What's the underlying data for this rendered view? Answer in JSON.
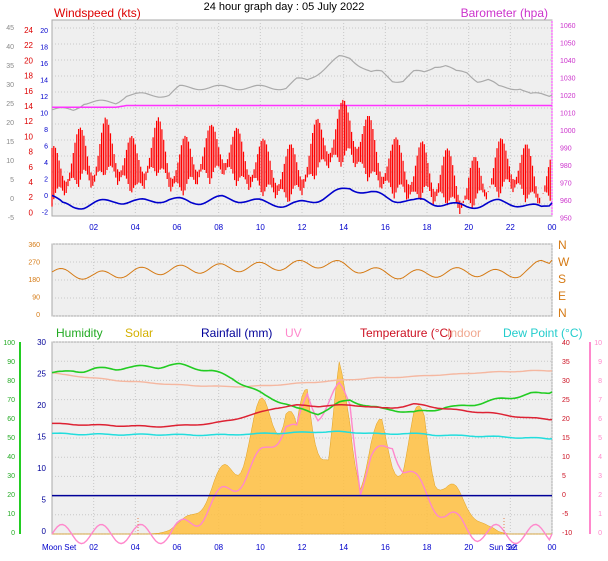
{
  "title": "24 hour graph day : 05 July 2022",
  "colors": {
    "wind": "#ff0000",
    "gust_avg": "#0000cc",
    "baro": "#ff33ff",
    "baro_alt": "#aaaaaa",
    "dir": "#d57a14",
    "humidity": "#22cc22",
    "solar": "#ffc040",
    "rain": "#000099",
    "uv": "#ff88cc",
    "temp": "#dd2233",
    "indoor": "#f5b7a0",
    "dew": "#22dddd",
    "plot_bg": "#efefef",
    "grid": "#c8c8c8",
    "axis_left": "#888888",
    "axis_blue": "#0000cc"
  },
  "chart_data": [
    {
      "id": "wind_baro",
      "type": "line",
      "label_left": "Windspeed (kts)",
      "label_right": "Barometer (hpa)",
      "x_ticks": [
        "02",
        "04",
        "06",
        "08",
        "10",
        "12",
        "14",
        "16",
        "18",
        "20",
        "22",
        "00"
      ],
      "y_left_red_ticks": [
        "24",
        "22",
        "20",
        "18",
        "16",
        "14",
        "12",
        "10",
        "8",
        "6",
        "4",
        "2",
        "0"
      ],
      "y_left_grey_ticks": [
        "45",
        "40",
        "35",
        "30",
        "25",
        "20",
        "15",
        "10",
        "5",
        "0",
        "-5"
      ],
      "y_left_blue_ticks": [
        "20",
        "18",
        "16",
        "14",
        "12",
        "10",
        "8",
        "6",
        "4",
        "2",
        "0",
        "-2"
      ],
      "y_right_ticks": [
        "1060",
        "1050",
        "1040",
        "1030",
        "1020",
        "1010",
        "1000",
        "990",
        "980",
        "970",
        "960",
        "950"
      ],
      "ylim_kts": [
        0,
        25
      ],
      "ylim_hpa": [
        950,
        1060
      ],
      "series": [
        {
          "key": "speed",
          "values": [
            3,
            4,
            5,
            6,
            5,
            7,
            6,
            5,
            4,
            6,
            7,
            5,
            4,
            5,
            6,
            6,
            7,
            6,
            5,
            5,
            4,
            4,
            3,
            4,
            5,
            7,
            8,
            8,
            9,
            7,
            6,
            5,
            4,
            4,
            3,
            4,
            3,
            3,
            2,
            2,
            3,
            4,
            4,
            5,
            4,
            3,
            3,
            3
          ]
        },
        {
          "key": "gust",
          "values": [
            7,
            8,
            9,
            10,
            9,
            11,
            10,
            9,
            8,
            10,
            11,
            9,
            8,
            9,
            10,
            10,
            11,
            10,
            9,
            9,
            8,
            8,
            7,
            8,
            9,
            11,
            12,
            13,
            14,
            12,
            11,
            9,
            8,
            9,
            7,
            8,
            7,
            7,
            6,
            5,
            6,
            7,
            8,
            9,
            8,
            7,
            6,
            6
          ]
        },
        {
          "key": "avg",
          "values": [
            2.5,
            1.2,
            1.0,
            1.1,
            1.4,
            1.6,
            1.8,
            1.7,
            1.6,
            1.7,
            1.9,
            2.0,
            1.8,
            1.6,
            1.7,
            1.9,
            2.1,
            2.0,
            1.9,
            1.7,
            1.5,
            1.4,
            1.2,
            1.3,
            1.6,
            2.0,
            2.5,
            3.0,
            3.5,
            3.2,
            2.8,
            2.4,
            2.0,
            1.9,
            1.6,
            1.8,
            1.5,
            1.3,
            1.1,
            1.0,
            1.2,
            1.4,
            1.6,
            1.5,
            1.3,
            1.0,
            0.8,
            1.5
          ]
        },
        {
          "key": "pressure",
          "values": [
            1011,
            1011,
            1011,
            1011,
            1011,
            1011,
            1011,
            1012,
            1012,
            1012,
            1012,
            1012,
            1012,
            1012,
            1012,
            1012,
            1012,
            1012,
            1012,
            1012,
            1012,
            1012,
            1012,
            1012,
            1012,
            1012,
            1012,
            1012,
            1012,
            1012,
            1012,
            1012,
            1012,
            1012,
            1012,
            1012,
            1012,
            1012,
            1012,
            1012,
            1012,
            1012,
            1012,
            1012,
            1012,
            1012,
            1012,
            1012
          ]
        },
        {
          "key": "grey_trace",
          "values": [
            14,
            14,
            14,
            15,
            15,
            15,
            15,
            16,
            16,
            16,
            16,
            16,
            17,
            17,
            17,
            17,
            17,
            17,
            17,
            17,
            17,
            17,
            17,
            18,
            18,
            19,
            20,
            21,
            21,
            20,
            19,
            19,
            18,
            18,
            19,
            19,
            20,
            20,
            19,
            19,
            18,
            18,
            17,
            17,
            17,
            16,
            16,
            16
          ]
        }
      ]
    },
    {
      "id": "direction",
      "type": "line",
      "y_ticks": [
        "360",
        "270",
        "180",
        "90",
        "0"
      ],
      "compass": [
        "N",
        "W",
        "S",
        "E",
        "N"
      ],
      "ylim": [
        0,
        360
      ],
      "series": [
        {
          "key": "direction",
          "values": [
            220,
            215,
            210,
            205,
            200,
            205,
            210,
            215,
            220,
            225,
            228,
            230,
            232,
            234,
            236,
            238,
            240,
            242,
            244,
            246,
            248,
            250,
            250,
            255,
            260,
            262,
            260,
            255,
            245,
            235,
            225,
            215,
            210,
            205,
            208,
            212,
            215,
            218,
            220,
            222,
            218,
            214,
            210,
            212,
            214,
            230,
            265,
            280
          ]
        }
      ]
    },
    {
      "id": "temp_solar",
      "type": "area",
      "labels": {
        "humidity": "Humidity",
        "solar": "Solar",
        "rain": "Rainfall (mm)",
        "uv": "UV",
        "temp": "Temperature (°C)",
        "indoor": "Indoor",
        "dew": "Dew Point (°C)"
      },
      "x_ticks": [
        "02",
        "04",
        "06",
        "08",
        "10",
        "12",
        "14",
        "16",
        "18",
        "20",
        "22",
        "00"
      ],
      "moon_set": "Moon Set",
      "sun_set": "Sun Set",
      "y_left_green_ticks": [
        "100",
        "90",
        "80",
        "70",
        "60",
        "50",
        "40",
        "30",
        "20",
        "10",
        "0"
      ],
      "y_left_blue_ticks": [
        "30",
        "25",
        "20",
        "15",
        "10",
        "5",
        "0"
      ],
      "y_right_temp_ticks": [
        "40",
        "35",
        "30",
        "25",
        "20",
        "15",
        "10",
        "5",
        "0",
        "-5",
        "-10"
      ],
      "y_right_uv_ticks": [
        "10",
        "9",
        "8",
        "7",
        "6",
        "5",
        "4",
        "3",
        "2",
        "1",
        "0"
      ],
      "series": [
        {
          "key": "humidity",
          "values": [
            84,
            84,
            85,
            85,
            86,
            86,
            86,
            87,
            87,
            87,
            87,
            88,
            88,
            87,
            86,
            85,
            83,
            81,
            78,
            75,
            72,
            70,
            68,
            65,
            64,
            63,
            65,
            68,
            70,
            68,
            66,
            65,
            65,
            64,
            63,
            64,
            65,
            66,
            66,
            67,
            68,
            69,
            70,
            71,
            72,
            73,
            73,
            74
          ]
        },
        {
          "key": "solar",
          "values": [
            0,
            0,
            0,
            0,
            0,
            0,
            0,
            0,
            0,
            0,
            5,
            20,
            50,
            100,
            160,
            220,
            290,
            370,
            440,
            520,
            600,
            680,
            700,
            460,
            720,
            560,
            380,
            720,
            620,
            300,
            420,
            500,
            420,
            380,
            520,
            560,
            330,
            250,
            200,
            140,
            90,
            40,
            10,
            0,
            0,
            0,
            0,
            0
          ]
        },
        {
          "key": "uv",
          "values": [
            0,
            0,
            0,
            0,
            0,
            0,
            0,
            0,
            0,
            0,
            0,
            0,
            0.2,
            0.6,
            1,
            1.5,
            2,
            2.5,
            3,
            3.6,
            4.2,
            5,
            5.8,
            5.2,
            7.2,
            6.4,
            6.8,
            7.4,
            6.9,
            2.5,
            3.8,
            4.2,
            4.8,
            3.5,
            2.8,
            2.2,
            1.6,
            1.0,
            0.6,
            0.3,
            0.1,
            0,
            0,
            0,
            0,
            0,
            0,
            0
          ]
        },
        {
          "key": "temperature",
          "values": [
            18.8,
            18.6,
            18.5,
            18.5,
            18.4,
            18.3,
            18.2,
            18.2,
            18.1,
            18.0,
            18.0,
            18.1,
            18.2,
            18.4,
            18.6,
            18.8,
            19.2,
            19.8,
            20.5,
            21.2,
            22.0,
            22.8,
            23.2,
            23.5,
            23.4,
            23.3,
            23.4,
            23.5,
            23.6,
            23.4,
            23.0,
            22.8,
            22.9,
            23.2,
            23.8,
            23.5,
            23.0,
            22.6,
            22.3,
            22.0,
            21.8,
            21.6,
            21.2,
            20.8,
            20.5,
            20.2,
            20.0,
            19.8
          ]
        },
        {
          "key": "indoor",
          "values": [
            32.0,
            31.5,
            31.2,
            30.9,
            30.6,
            30.3,
            30.0,
            29.8,
            29.6,
            29.4,
            29.2,
            29.0,
            28.8,
            28.7,
            28.6,
            28.5,
            28.4,
            28.4,
            28.4,
            28.5,
            28.6,
            28.8,
            29.0,
            29.2,
            29.4,
            29.6,
            29.8,
            30.0,
            30.2,
            30.4,
            30.6,
            30.7,
            30.8,
            30.9,
            31.0,
            31.2,
            31.4,
            31.5,
            31.6,
            31.8,
            32.0,
            32.1,
            32.2,
            32.3,
            32.4,
            32.5,
            32.5,
            32.5
          ]
        },
        {
          "key": "dew_point",
          "values": [
            16.2,
            16.1,
            16.0,
            16.0,
            16.0,
            15.9,
            15.9,
            15.9,
            15.9,
            15.9,
            15.9,
            15.9,
            15.8,
            15.8,
            15.8,
            15.8,
            15.8,
            15.9,
            16.0,
            16.0,
            16.2,
            16.3,
            16.3,
            16.4,
            16.5,
            16.6,
            16.6,
            16.6,
            16.5,
            16.4,
            16.2,
            16.0,
            16.1,
            16.2,
            16.1,
            16.0,
            15.8,
            15.7,
            15.6,
            15.6,
            15.5,
            15.4,
            15.3,
            15.2,
            15.1,
            15.0,
            14.9,
            14.8
          ]
        },
        {
          "key": "rainfall",
          "values": [
            0,
            0,
            0,
            0,
            0,
            0,
            0,
            0,
            0,
            0,
            0,
            0,
            0,
            0,
            0,
            0,
            0,
            0,
            0,
            0,
            0,
            0,
            0,
            0,
            0,
            0,
            0,
            0,
            0,
            0,
            0,
            0,
            0,
            0,
            0,
            0,
            0,
            0,
            0,
            0,
            0,
            0,
            0,
            0,
            0,
            0,
            0,
            0
          ]
        }
      ]
    }
  ]
}
